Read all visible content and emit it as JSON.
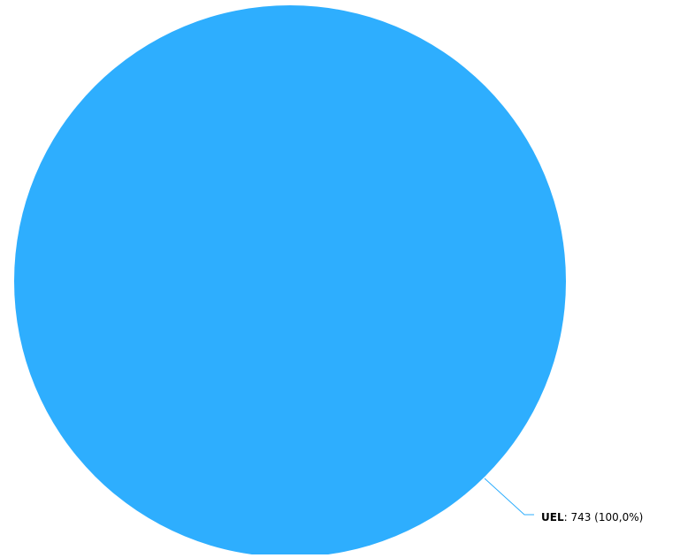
{
  "chart_data": {
    "type": "pie",
    "title": "",
    "slices": [
      {
        "label": "UEL",
        "value": 743,
        "percent_text": "100,0%",
        "color": "#2eaefe"
      }
    ],
    "data_label": {
      "name": "UEL",
      "separator": ": ",
      "value_text": "743 (100,0%)"
    },
    "connector_color": "#2eaefe"
  }
}
